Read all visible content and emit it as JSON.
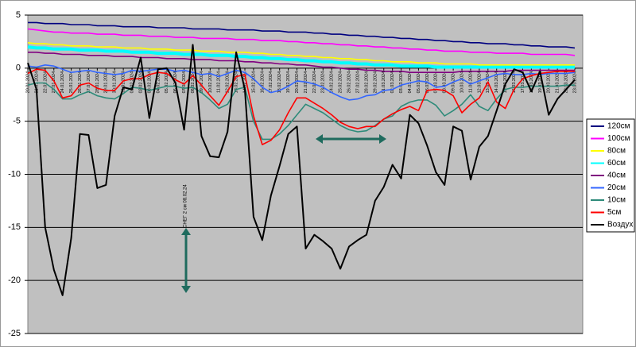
{
  "chart_data": {
    "type": "line",
    "annotation": "СНЕГ 2 см 08.02.24",
    "categories": [
      "20.01.2024",
      "21.01.2024",
      "22.01.2024",
      "23.01.2024",
      "24.01.2024",
      "25.01.2024",
      "26.01.2024",
      "27.01.2024",
      "28.01.2024",
      "29.01.2024",
      "30.01.2024",
      "31.01.2024",
      "01.02.2024",
      "02.02.2024",
      "03.02.2024",
      "04.02.2024",
      "05.02.2024",
      "06.02.2024",
      "07.02.2024",
      "08.02.2024",
      "09.02.2024",
      "10.02.2024",
      "11.02.2024",
      "12.02.2024",
      "13.02.2024",
      "14.02.2024",
      "15.02.2024",
      "16.02.2024",
      "17.02.2024",
      "18.02.2024",
      "19.02.2024",
      "20.02.2024",
      "21.02.2024",
      "22.02.2024",
      "23.02.2024",
      "24.02.2024",
      "25.02.2024",
      "26.02.2024",
      "27.02.2024",
      "28.02.2024",
      "29.02.2024",
      "01.03.2024",
      "02.03.2024",
      "03.03.2024",
      "04.03.2024",
      "05.03.2024",
      "06.03.2024",
      "07.03.2024",
      "08.03.2024",
      "09.03.2024",
      "10.03.2024",
      "11.03.2024",
      "12.03.2024",
      "13.03.2024",
      "14.03.2024",
      "15.03.2024",
      "16.03.2024",
      "17.03.2024",
      "18.03.2024",
      "19.03.2024",
      "20.03.2024",
      "21.03.2024",
      "22.03.2024",
      "23.03.2024"
    ],
    "ylim": [
      -25,
      5
    ],
    "yticks": [
      -25,
      -20,
      -15,
      -10,
      -5,
      0,
      5
    ],
    "grid": true,
    "legend": "right",
    "series": [
      {
        "name": "120см",
        "color": "#000080",
        "values": [
          4.3,
          4.3,
          4.2,
          4.2,
          4.2,
          4.1,
          4.1,
          4.1,
          4.0,
          4.0,
          4.0,
          3.9,
          3.9,
          3.9,
          3.9,
          3.8,
          3.8,
          3.8,
          3.8,
          3.7,
          3.7,
          3.7,
          3.7,
          3.6,
          3.6,
          3.6,
          3.6,
          3.5,
          3.5,
          3.5,
          3.4,
          3.4,
          3.4,
          3.3,
          3.3,
          3.2,
          3.2,
          3.1,
          3.1,
          3.0,
          3.0,
          2.9,
          2.9,
          2.8,
          2.8,
          2.7,
          2.7,
          2.6,
          2.6,
          2.5,
          2.5,
          2.4,
          2.4,
          2.3,
          2.3,
          2.3,
          2.2,
          2.2,
          2.1,
          2.1,
          2.0,
          2.0,
          2.0,
          1.9
        ]
      },
      {
        "name": "100см",
        "color": "#ff00ff",
        "values": [
          3.7,
          3.6,
          3.5,
          3.4,
          3.4,
          3.3,
          3.3,
          3.3,
          3.2,
          3.2,
          3.2,
          3.1,
          3.1,
          3.1,
          3.0,
          3.0,
          3.0,
          2.9,
          2.9,
          2.9,
          2.8,
          2.8,
          2.8,
          2.8,
          2.7,
          2.7,
          2.7,
          2.6,
          2.6,
          2.6,
          2.5,
          2.5,
          2.4,
          2.4,
          2.3,
          2.3,
          2.2,
          2.2,
          2.1,
          2.1,
          2.0,
          2.0,
          1.9,
          1.9,
          1.8,
          1.8,
          1.7,
          1.7,
          1.6,
          1.6,
          1.6,
          1.5,
          1.5,
          1.5,
          1.4,
          1.4,
          1.4,
          1.4,
          1.3,
          1.3,
          1.3,
          1.3,
          1.3,
          1.2
        ]
      },
      {
        "name": "80см",
        "color": "#ffff00",
        "values": [
          2.4,
          2.3,
          2.3,
          2.2,
          2.2,
          2.1,
          2.1,
          2.1,
          2.0,
          2.0,
          2.0,
          1.9,
          1.9,
          1.9,
          1.8,
          1.8,
          1.8,
          1.7,
          1.7,
          1.7,
          1.6,
          1.6,
          1.6,
          1.5,
          1.5,
          1.5,
          1.4,
          1.4,
          1.3,
          1.3,
          1.2,
          1.2,
          1.1,
          1.1,
          1.0,
          1.0,
          0.9,
          0.9,
          0.8,
          0.8,
          0.7,
          0.7,
          0.6,
          0.6,
          0.6,
          0.5,
          0.5,
          0.5,
          0.4,
          0.4,
          0.4,
          0.4,
          0.3,
          0.3,
          0.3,
          0.3,
          0.3,
          0.3,
          0.3,
          0.3,
          0.3,
          0.3,
          0.3,
          0.3
        ]
      },
      {
        "name": "60см",
        "color": "#00ffff",
        "values": [
          2.0,
          1.9,
          1.9,
          1.8,
          1.8,
          1.8,
          1.7,
          1.7,
          1.7,
          1.6,
          1.6,
          1.6,
          1.5,
          1.5,
          1.5,
          1.4,
          1.4,
          1.4,
          1.3,
          1.3,
          1.3,
          1.2,
          1.2,
          1.2,
          1.1,
          1.1,
          1.0,
          1.0,
          0.9,
          0.9,
          0.8,
          0.8,
          0.7,
          0.7,
          0.6,
          0.6,
          0.5,
          0.5,
          0.4,
          0.4,
          0.3,
          0.3,
          0.3,
          0.2,
          0.2,
          0.2,
          0.2,
          0.1,
          0.1,
          0.1,
          0.1,
          0.1,
          0.1,
          0.1,
          0.1,
          0.1,
          0.1,
          0.1,
          0.1,
          0.1,
          0.1,
          0.1,
          0.1,
          0.1
        ]
      },
      {
        "name": "40см",
        "color": "#800080",
        "values": [
          1.5,
          1.5,
          1.4,
          1.4,
          1.3,
          1.3,
          1.3,
          1.2,
          1.2,
          1.2,
          1.1,
          1.1,
          1.1,
          1.0,
          1.0,
          1.0,
          0.9,
          0.9,
          0.9,
          0.8,
          0.8,
          0.8,
          0.7,
          0.7,
          0.7,
          0.6,
          0.6,
          0.5,
          0.5,
          0.4,
          0.4,
          0.3,
          0.3,
          0.2,
          0.1,
          0.1,
          0.0,
          -0.1,
          -0.1,
          -0.2,
          -0.2,
          -0.3,
          -0.3,
          -0.3,
          -0.4,
          -0.4,
          -0.4,
          -0.4,
          -0.4,
          -0.4,
          -0.3,
          -0.3,
          -0.3,
          -0.3,
          -0.3,
          -0.3,
          -0.2,
          -0.2,
          -0.2,
          -0.2,
          -0.2,
          -0.2,
          -0.2,
          -0.2
        ]
      },
      {
        "name": "20см",
        "color": "#3366ff",
        "values": [
          0.2,
          0.1,
          0.3,
          0.2,
          -0.1,
          -0.4,
          -0.3,
          -0.2,
          -0.4,
          -0.5,
          -0.6,
          -0.5,
          -0.2,
          -0.3,
          -0.2,
          -0.1,
          -0.1,
          -0.3,
          -0.2,
          -0.4,
          -0.6,
          -0.5,
          -0.8,
          -0.5,
          -0.2,
          -0.4,
          -1.0,
          -1.8,
          -2.3,
          -2.1,
          -1.7,
          -1.2,
          -1.3,
          -1.5,
          -1.8,
          -2.3,
          -2.7,
          -3.0,
          -2.9,
          -2.6,
          -2.5,
          -2.1,
          -2.0,
          -1.6,
          -1.4,
          -1.2,
          -1.3,
          -1.8,
          -1.7,
          -1.3,
          -1.0,
          -1.5,
          -1.2,
          -0.9,
          -0.6,
          -0.5,
          -0.6,
          -0.6,
          -0.5,
          -0.6,
          -0.5,
          -0.5,
          -0.5,
          -0.4
        ]
      },
      {
        "name": "10см",
        "color": "#2e8b7a",
        "values": [
          -1.6,
          -1.4,
          -1.4,
          -2.0,
          -2.9,
          -2.9,
          -2.5,
          -2.2,
          -2.6,
          -2.8,
          -2.9,
          -2.4,
          -1.8,
          -1.9,
          -2.1,
          -1.9,
          -1.7,
          -1.7,
          -1.9,
          -1.8,
          -2.3,
          -3.0,
          -3.8,
          -3.4,
          -2.0,
          -1.8,
          -5.0,
          -6.7,
          -6.7,
          -6.2,
          -5.4,
          -4.4,
          -3.4,
          -3.8,
          -4.2,
          -4.8,
          -5.4,
          -5.8,
          -6.0,
          -5.9,
          -5.4,
          -4.8,
          -4.5,
          -3.6,
          -3.2,
          -3.0,
          -3.0,
          -3.5,
          -4.5,
          -4.0,
          -3.4,
          -2.5,
          -3.6,
          -4.0,
          -2.9,
          -2.0,
          -1.8,
          -1.8,
          -1.7,
          -1.7,
          -1.7,
          -1.7,
          -1.6,
          -1.6
        ]
      },
      {
        "name": "5см",
        "color": "#ff0000",
        "values": [
          -0.5,
          -0.1,
          -0.2,
          -1.2,
          -2.8,
          -2.6,
          -1.6,
          -1.4,
          -1.9,
          -2.1,
          -2.1,
          -1.2,
          -1.0,
          -1.0,
          -0.6,
          -0.4,
          -0.5,
          -1.1,
          -1.5,
          -0.7,
          -1.6,
          -2.6,
          -3.5,
          -2.2,
          -0.8,
          -0.6,
          -4.5,
          -7.2,
          -6.8,
          -5.8,
          -4.2,
          -2.8,
          -2.8,
          -3.3,
          -3.8,
          -4.4,
          -5.1,
          -5.5,
          -5.7,
          -5.5,
          -5.5,
          -4.8,
          -4.3,
          -3.9,
          -3.6,
          -4.0,
          -2.1,
          -2.0,
          -2.1,
          -2.6,
          -4.2,
          -3.4,
          -2.8,
          -1.3,
          -3.2,
          -3.8,
          -2.0,
          -1.0,
          -0.7,
          -0.5,
          -0.4,
          -0.3,
          -0.3,
          -0.3
        ]
      },
      {
        "name": "Воздух",
        "color": "#000000",
        "values": [
          0.5,
          -2,
          -15,
          -19,
          -21.4,
          -16,
          -6.2,
          -6.3,
          -11.3,
          -11,
          -4.5,
          -1.8,
          -2,
          1,
          -4.7,
          -0.1,
          0,
          -1.4,
          -5.8,
          2.2,
          -6.4,
          -8.3,
          -8.4,
          -6,
          1.5,
          -2,
          -14,
          -16.2,
          -12,
          -9.2,
          -6.2,
          -5.5,
          -17,
          -15.7,
          -16.3,
          -17,
          -18.9,
          -16.8,
          -16.2,
          -15.7,
          -12.5,
          -11.2,
          -9.1,
          -10.4,
          -4.4,
          -5.2,
          -7.3,
          -9.8,
          -11,
          -5.5,
          -5.9,
          -10.5,
          -7.4,
          -6.4,
          -4,
          -1.5,
          -0.1,
          -0.4,
          -2.2,
          -0.3,
          -4.4,
          -2.9,
          -2,
          -1.1
        ]
      }
    ]
  }
}
